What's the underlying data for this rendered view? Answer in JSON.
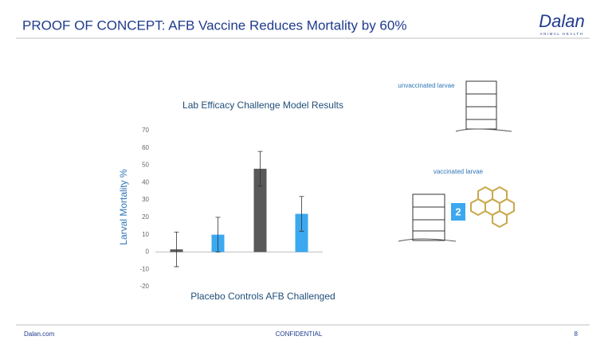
{
  "header": {
    "title": "PROOF OF CONCEPT: AFB Vaccine Reduces Mortality by 60%",
    "logo": "Dalan",
    "logo_sub": "ANIMAL HEALTH"
  },
  "images": [
    {
      "label": "unvaccinated larvae"
    },
    {
      "label": "vaccinated larvae",
      "badge": "2"
    }
  ],
  "footer": {
    "left": "Dalan.com",
    "center": "CONFIDENTIAL",
    "page": "8"
  },
  "chart_data": {
    "type": "bar",
    "title": "Lab Efficacy Challenge Model Results",
    "ylabel": "Larval Mortality %",
    "xlabel": "Placebo Controls AFB Challenged",
    "series": [
      {
        "color": "#595959",
        "values": [
          1.5,
          48
        ],
        "errors": [
          10,
          10
        ]
      },
      {
        "color": "#3ba8ef",
        "values": [
          10,
          22
        ],
        "errors": [
          10,
          10
        ]
      }
    ],
    "ylim": [
      -20,
      70
    ],
    "yticks": [
      -20,
      -10,
      0,
      10,
      20,
      30,
      40,
      50,
      60,
      70
    ],
    "grid": false
  }
}
